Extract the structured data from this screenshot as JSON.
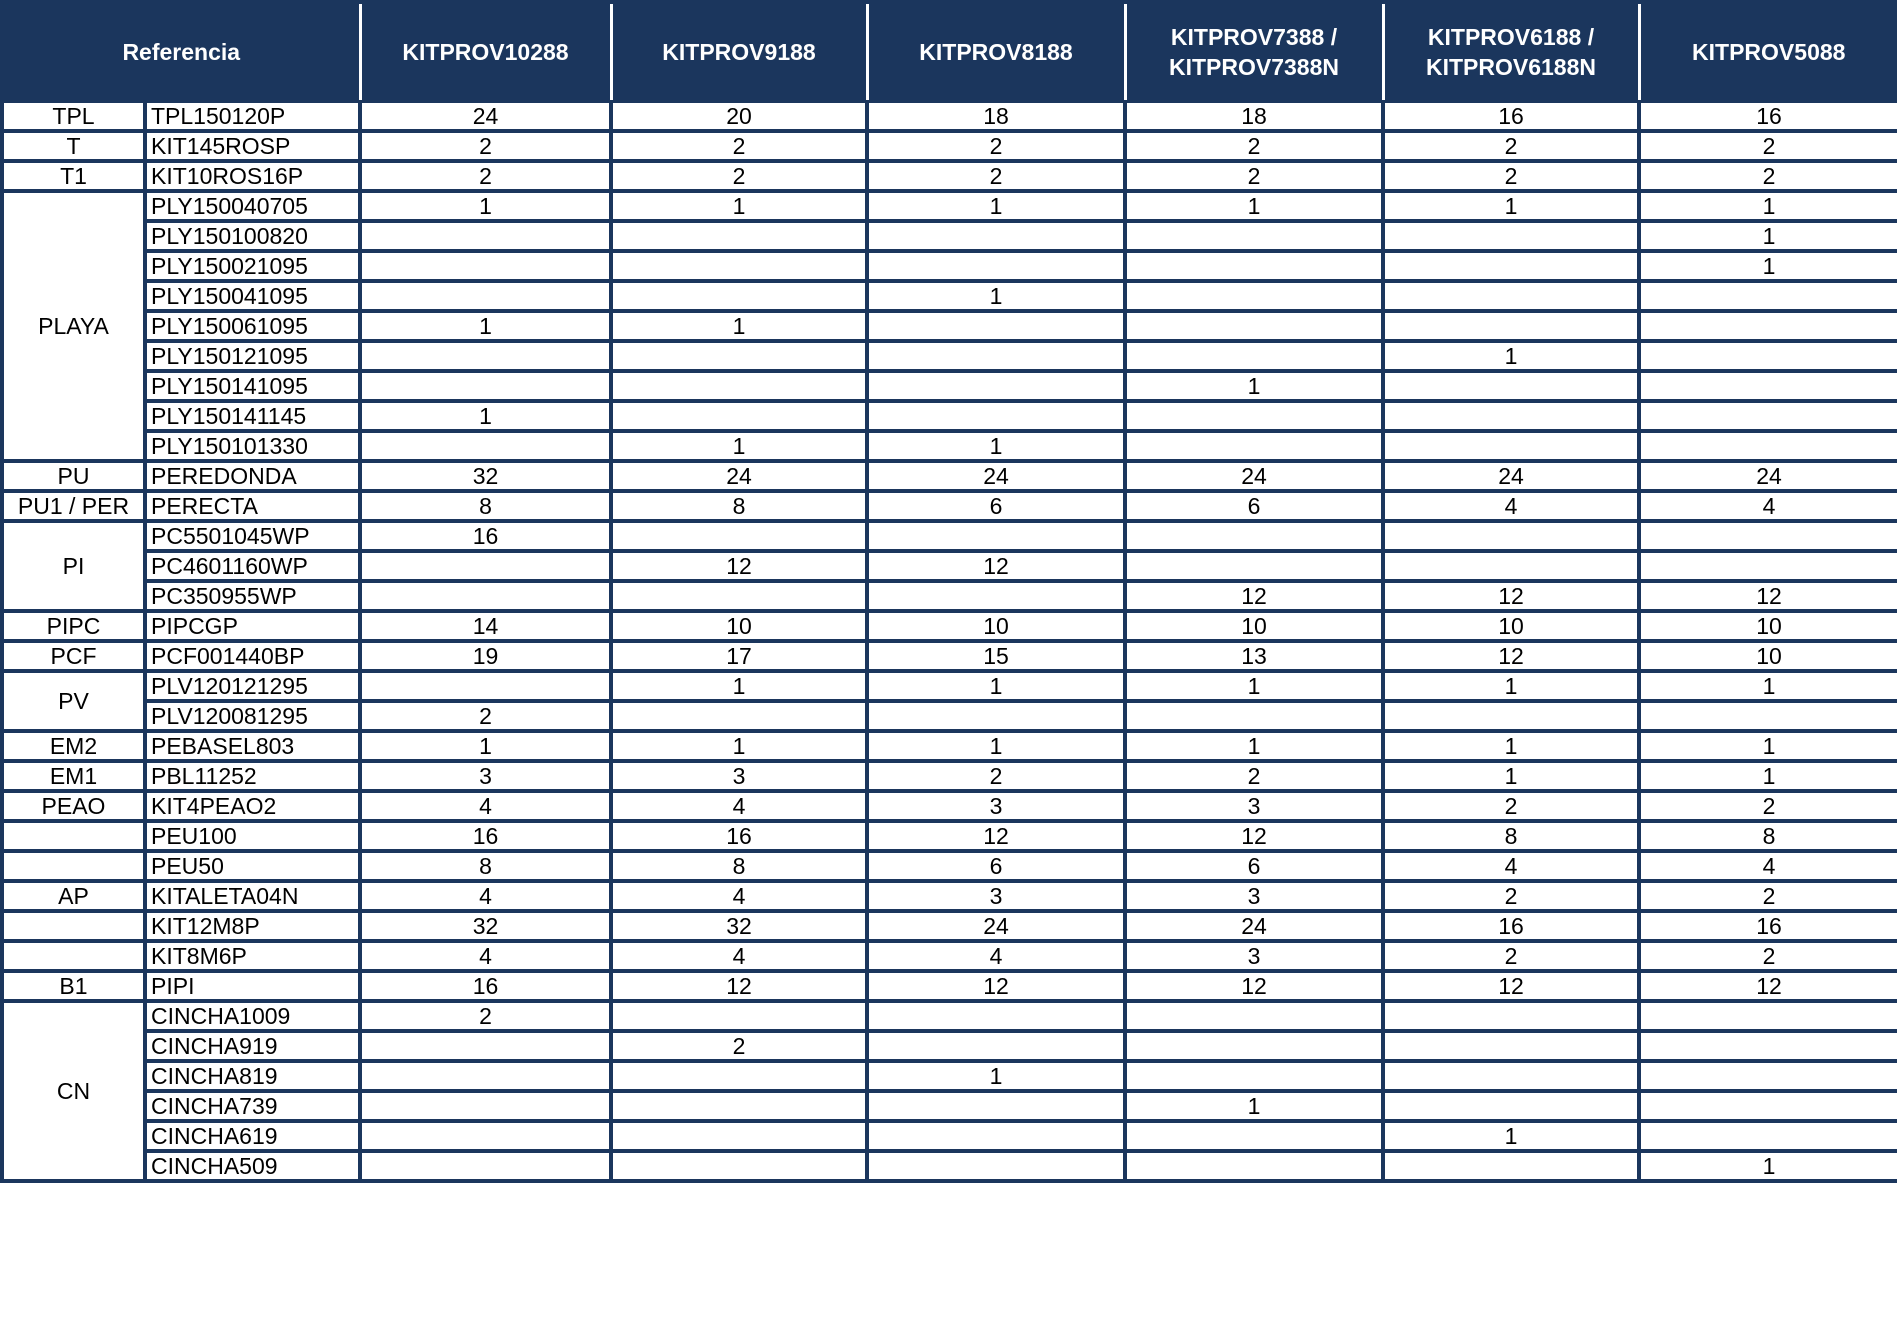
{
  "header": {
    "reference": "Referencia",
    "columns": [
      "KITPROV10288",
      "KITPROV9188",
      "KITPROV8188",
      "KITPROV7388 / KITPROV7388N",
      "KITPROV6188 / KITPROV6188N",
      "KITPROV5088"
    ]
  },
  "groups": [
    {
      "label": "TPL",
      "rows": [
        {
          "ref": "TPL150120P",
          "values": [
            "24",
            "20",
            "18",
            "18",
            "16",
            "16"
          ]
        }
      ]
    },
    {
      "label": "T",
      "rows": [
        {
          "ref": "KIT145ROSP",
          "values": [
            "2",
            "2",
            "2",
            "2",
            "2",
            "2"
          ]
        }
      ]
    },
    {
      "label": "T1",
      "rows": [
        {
          "ref": "KIT10ROS16P",
          "values": [
            "2",
            "2",
            "2",
            "2",
            "2",
            "2"
          ]
        }
      ]
    },
    {
      "label": "PLAYA",
      "rows": [
        {
          "ref": "PLY150040705",
          "values": [
            "1",
            "1",
            "1",
            "1",
            "1",
            "1"
          ]
        },
        {
          "ref": "PLY150100820",
          "values": [
            "",
            "",
            "",
            "",
            "",
            "1"
          ]
        },
        {
          "ref": "PLY150021095",
          "values": [
            "",
            "",
            "",
            "",
            "",
            "1"
          ]
        },
        {
          "ref": "PLY150041095",
          "values": [
            "",
            "",
            "1",
            "",
            "",
            ""
          ]
        },
        {
          "ref": "PLY150061095",
          "values": [
            "1",
            "1",
            "",
            "",
            "",
            ""
          ]
        },
        {
          "ref": "PLY150121095",
          "values": [
            "",
            "",
            "",
            "",
            "1",
            ""
          ]
        },
        {
          "ref": "PLY150141095",
          "values": [
            "",
            "",
            "",
            "1",
            "",
            ""
          ]
        },
        {
          "ref": "PLY150141145",
          "values": [
            "1",
            "",
            "",
            "",
            "",
            ""
          ]
        },
        {
          "ref": "PLY150101330",
          "values": [
            "",
            "1",
            "1",
            "",
            "",
            ""
          ]
        }
      ]
    },
    {
      "label": "PU",
      "rows": [
        {
          "ref": "PEREDONDA",
          "values": [
            "32",
            "24",
            "24",
            "24",
            "24",
            "24"
          ]
        }
      ]
    },
    {
      "label": "PU1 / PER",
      "rows": [
        {
          "ref": "PERECTA",
          "values": [
            "8",
            "8",
            "6",
            "6",
            "4",
            "4"
          ]
        }
      ]
    },
    {
      "label": "PI",
      "rows": [
        {
          "ref": "PC5501045WP",
          "values": [
            "16",
            "",
            "",
            "",
            "",
            ""
          ]
        },
        {
          "ref": "PC4601160WP",
          "values": [
            "",
            "12",
            "12",
            "",
            "",
            ""
          ]
        },
        {
          "ref": "PC350955WP",
          "values": [
            "",
            "",
            "",
            "12",
            "12",
            "12"
          ]
        }
      ]
    },
    {
      "label": "PIPC",
      "rows": [
        {
          "ref": "PIPCGP",
          "values": [
            "14",
            "10",
            "10",
            "10",
            "10",
            "10"
          ]
        }
      ]
    },
    {
      "label": "PCF",
      "rows": [
        {
          "ref": "PCF001440BP",
          "values": [
            "19",
            "17",
            "15",
            "13",
            "12",
            "10"
          ]
        }
      ]
    },
    {
      "label": "PV",
      "rows": [
        {
          "ref": "PLV120121295",
          "values": [
            "",
            "1",
            "1",
            "1",
            "1",
            "1"
          ]
        },
        {
          "ref": "PLV120081295",
          "values": [
            "2",
            "",
            "",
            "",
            "",
            ""
          ]
        }
      ]
    },
    {
      "label": "EM2",
      "rows": [
        {
          "ref": "PEBASEL803",
          "values": [
            "1",
            "1",
            "1",
            "1",
            "1",
            "1"
          ]
        }
      ]
    },
    {
      "label": "EM1",
      "rows": [
        {
          "ref": "PBL11252",
          "values": [
            "3",
            "3",
            "2",
            "2",
            "1",
            "1"
          ]
        }
      ]
    },
    {
      "label": "PEAO",
      "rows": [
        {
          "ref": "KIT4PEAO2",
          "values": [
            "4",
            "4",
            "3",
            "3",
            "2",
            "2"
          ]
        }
      ]
    },
    {
      "label": "",
      "rows": [
        {
          "ref": "PEU100",
          "values": [
            "16",
            "16",
            "12",
            "12",
            "8",
            "8"
          ]
        }
      ]
    },
    {
      "label": "",
      "rows": [
        {
          "ref": "PEU50",
          "values": [
            "8",
            "8",
            "6",
            "6",
            "4",
            "4"
          ]
        }
      ]
    },
    {
      "label": "AP",
      "rows": [
        {
          "ref": "KITALETA04N",
          "values": [
            "4",
            "4",
            "3",
            "3",
            "2",
            "2"
          ]
        }
      ]
    },
    {
      "label": "",
      "rows": [
        {
          "ref": "KIT12M8P",
          "values": [
            "32",
            "32",
            "24",
            "24",
            "16",
            "16"
          ]
        }
      ]
    },
    {
      "label": "",
      "rows": [
        {
          "ref": "KIT8M6P",
          "values": [
            "4",
            "4",
            "4",
            "3",
            "2",
            "2"
          ]
        }
      ]
    },
    {
      "label": "B1",
      "rows": [
        {
          "ref": "PIPI",
          "values": [
            "16",
            "12",
            "12",
            "12",
            "12",
            "12"
          ]
        }
      ]
    },
    {
      "label": "CN",
      "rows": [
        {
          "ref": "CINCHA1009",
          "values": [
            "2",
            "",
            "",
            "",
            "",
            ""
          ]
        },
        {
          "ref": "CINCHA919",
          "values": [
            "",
            "2",
            "",
            "",
            "",
            ""
          ]
        },
        {
          "ref": "CINCHA819",
          "values": [
            "",
            "",
            "1",
            "",
            "",
            ""
          ]
        },
        {
          "ref": "CINCHA739",
          "values": [
            "",
            "",
            "",
            "1",
            "",
            ""
          ]
        },
        {
          "ref": "CINCHA619",
          "values": [
            "",
            "",
            "",
            "",
            "1",
            ""
          ]
        },
        {
          "ref": "CINCHA509",
          "values": [
            "",
            "",
            "",
            "",
            "",
            "1"
          ]
        }
      ]
    }
  ],
  "colors": {
    "header_bg": "#1b365d",
    "header_text": "#ffffff",
    "border": "#1b365d"
  }
}
